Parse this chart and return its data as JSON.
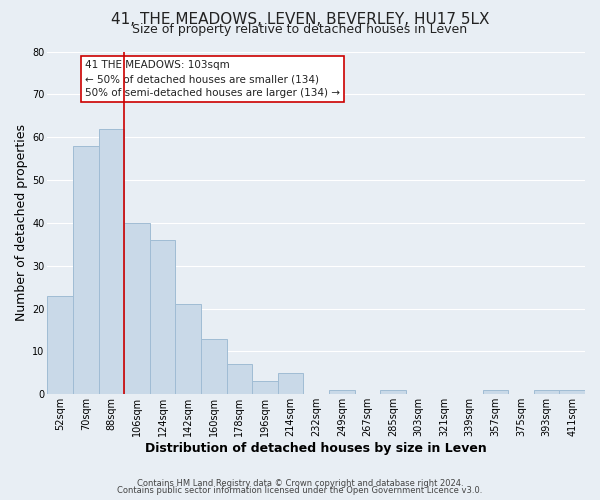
{
  "title": "41, THE MEADOWS, LEVEN, BEVERLEY, HU17 5LX",
  "subtitle": "Size of property relative to detached houses in Leven",
  "xlabel": "Distribution of detached houses by size in Leven",
  "ylabel": "Number of detached properties",
  "bar_labels": [
    "52sqm",
    "70sqm",
    "88sqm",
    "106sqm",
    "124sqm",
    "142sqm",
    "160sqm",
    "178sqm",
    "196sqm",
    "214sqm",
    "232sqm",
    "249sqm",
    "267sqm",
    "285sqm",
    "303sqm",
    "321sqm",
    "339sqm",
    "357sqm",
    "375sqm",
    "393sqm",
    "411sqm"
  ],
  "bar_heights": [
    23,
    58,
    62,
    40,
    36,
    21,
    13,
    7,
    3,
    5,
    0,
    1,
    0,
    1,
    0,
    0,
    0,
    1,
    0,
    1,
    1
  ],
  "bar_color": "#c9d9e8",
  "bar_edge_color": "#a0bcd4",
  "vline_color": "#cc0000",
  "vline_index": 2.5,
  "ylim": [
    0,
    80
  ],
  "yticks": [
    0,
    10,
    20,
    30,
    40,
    50,
    60,
    70,
    80
  ],
  "annotation_text": "41 THE MEADOWS: 103sqm\n← 50% of detached houses are smaller (134)\n50% of semi-detached houses are larger (134) →",
  "annotation_box_color": "#ffffff",
  "annotation_box_edge": "#cc0000",
  "footer_line1": "Contains HM Land Registry data © Crown copyright and database right 2024.",
  "footer_line2": "Contains public sector information licensed under the Open Government Licence v3.0.",
  "background_color": "#e8eef4",
  "grid_color": "#ffffff",
  "title_fontsize": 11,
  "subtitle_fontsize": 9,
  "axis_label_fontsize": 9,
  "tick_fontsize": 7,
  "footer_fontsize": 6,
  "annotation_fontsize": 7.5
}
